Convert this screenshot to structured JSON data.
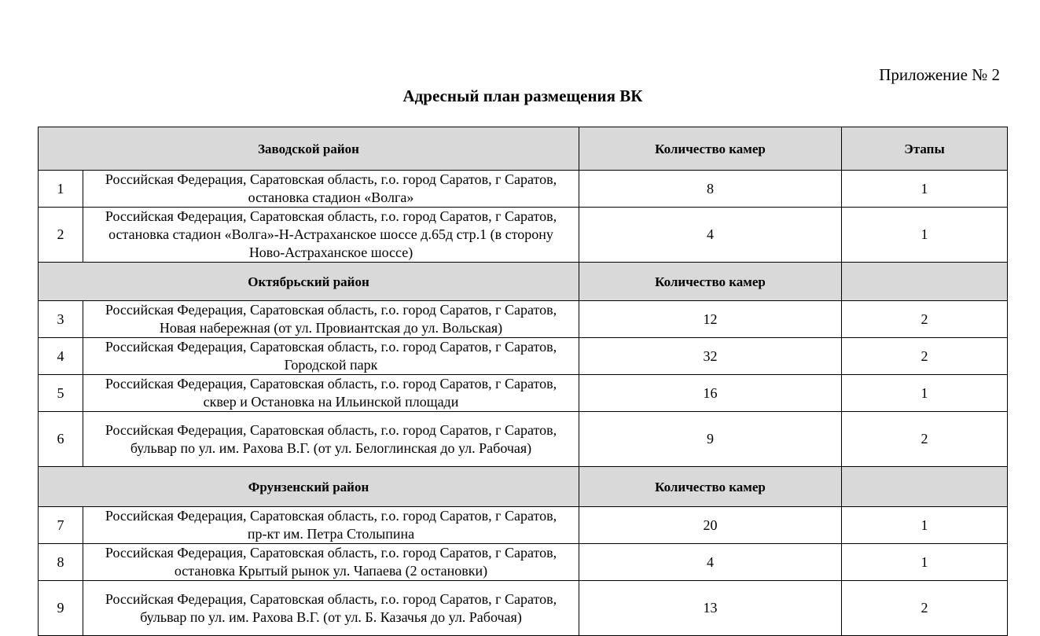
{
  "annex": "Приложение № 2",
  "title": "Адресный план размещения ВК",
  "sections": [
    {
      "name": "Заводской район",
      "count_header": "Количество камер",
      "stage_header": "Этапы",
      "rows": [
        {
          "n": "1",
          "address": "Российская Федерация, Саратовская область, г.о. город Саратов, г Саратов, остановка стадион «Волга»",
          "cameras": "8",
          "stage": "1"
        },
        {
          "n": "2",
          "address": "Российская Федерация, Саратовская область, г.о. город Саратов, г Саратов, остановка стадион «Волга»-Н-Астраханское шоссе д.65д стр.1 (в сторону Ново-Астраханское шоссе)",
          "cameras": "4",
          "stage": "1"
        }
      ]
    },
    {
      "name": "Октябрьский район",
      "count_header": "Количество камер",
      "stage_header": "",
      "rows": [
        {
          "n": "3",
          "address": "Российская Федерация, Саратовская область, г.о. город Саратов, г Саратов, Новая набережная (от ул. Провиантская до ул. Вольская)",
          "cameras": "12",
          "stage": "2"
        },
        {
          "n": "4",
          "address": "Российская Федерация, Саратовская область, г.о. город Саратов, г Саратов, Городской парк",
          "cameras": "32",
          "stage": "2"
        },
        {
          "n": "5",
          "address": "Российская Федерация, Саратовская область, г.о. город Саратов, г Саратов, сквер и Остановка на Ильинской площади",
          "cameras": "16",
          "stage": "1"
        },
        {
          "n": "6",
          "address": "Российская Федерация, Саратовская область, г.о. город Саратов, г Саратов, бульвар по ул. им. Рахова В.Г. (от ул. Белоглинская до ул. Рабочая)",
          "cameras": "9",
          "stage": "2"
        }
      ]
    },
    {
      "name": "Фрунзенский район",
      "count_header": "Количество камер",
      "stage_header": "",
      "rows": [
        {
          "n": "7",
          "address": "Российская Федерация, Саратовская область, г.о. город Саратов, г Саратов, пр-кт им. Петра Столыпина",
          "cameras": "20",
          "stage": "1"
        },
        {
          "n": "8",
          "address": "Российская Федерация, Саратовская область, г.о. город Саратов, г Саратов, остановка Крытый рынок ул. Чапаева (2 остановки)",
          "cameras": "4",
          "stage": "1"
        },
        {
          "n": "9",
          "address": "Российская Федерация, Саратовская область, г.о. город Саратов, г Саратов, бульвар по ул. им. Рахова В.Г. (от ул. Б. Казачья до ул. Рабочая)",
          "cameras": "13",
          "stage": "2"
        }
      ]
    }
  ]
}
